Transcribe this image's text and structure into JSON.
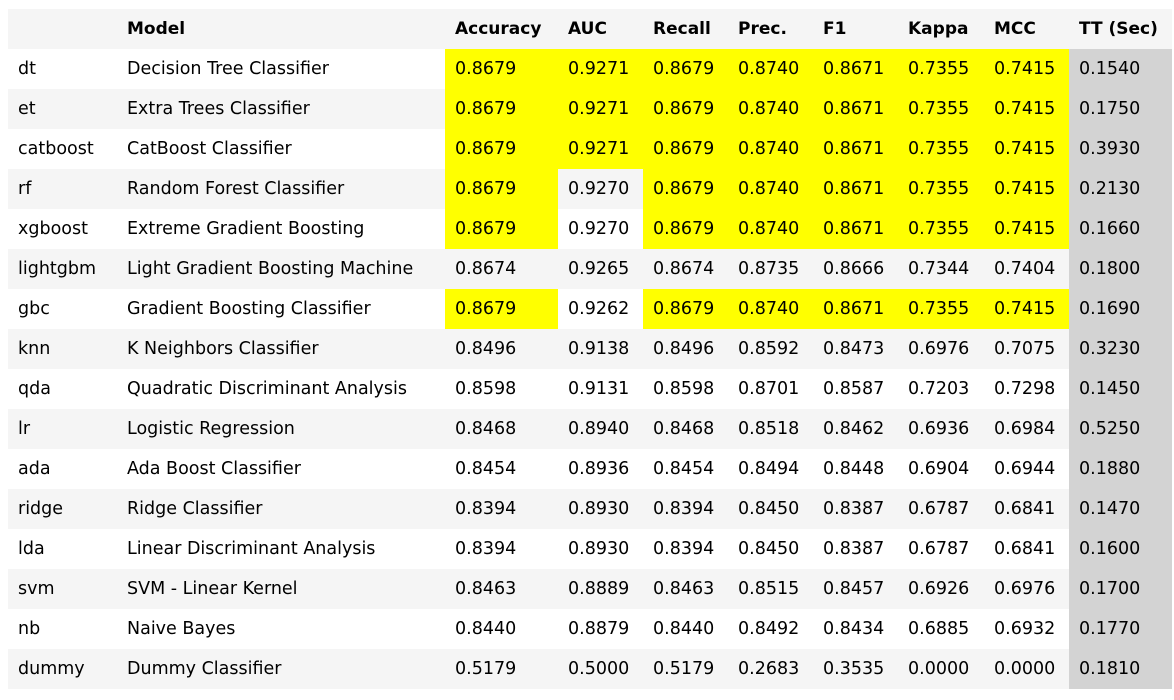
{
  "table": {
    "headers": [
      "",
      "Model",
      "Accuracy",
      "AUC",
      "Recall",
      "Prec.",
      "F1",
      "Kappa",
      "MCC",
      "TT (Sec)"
    ],
    "highlight_color": "#ffff00",
    "tt_column_color": "#d3d3d3",
    "rows": [
      {
        "id": "dt",
        "model": "Decision Tree Classifier",
        "accuracy": "0.8679",
        "auc": "0.9271",
        "recall": "0.8679",
        "prec": "0.8740",
        "f1": "0.8671",
        "kappa": "0.7355",
        "mcc": "0.7415",
        "tt": "0.1540",
        "hl": [
          1,
          1,
          1,
          1,
          1,
          1,
          1
        ]
      },
      {
        "id": "et",
        "model": "Extra Trees Classifier",
        "accuracy": "0.8679",
        "auc": "0.9271",
        "recall": "0.8679",
        "prec": "0.8740",
        "f1": "0.8671",
        "kappa": "0.7355",
        "mcc": "0.7415",
        "tt": "0.1750",
        "hl": [
          1,
          1,
          1,
          1,
          1,
          1,
          1
        ]
      },
      {
        "id": "catboost",
        "model": "CatBoost Classifier",
        "accuracy": "0.8679",
        "auc": "0.9271",
        "recall": "0.8679",
        "prec": "0.8740",
        "f1": "0.8671",
        "kappa": "0.7355",
        "mcc": "0.7415",
        "tt": "0.3930",
        "hl": [
          1,
          1,
          1,
          1,
          1,
          1,
          1
        ]
      },
      {
        "id": "rf",
        "model": "Random Forest Classifier",
        "accuracy": "0.8679",
        "auc": "0.9270",
        "recall": "0.8679",
        "prec": "0.8740",
        "f1": "0.8671",
        "kappa": "0.7355",
        "mcc": "0.7415",
        "tt": "0.2130",
        "hl": [
          1,
          0,
          1,
          1,
          1,
          1,
          1
        ]
      },
      {
        "id": "xgboost",
        "model": "Extreme Gradient Boosting",
        "accuracy": "0.8679",
        "auc": "0.9270",
        "recall": "0.8679",
        "prec": "0.8740",
        "f1": "0.8671",
        "kappa": "0.7355",
        "mcc": "0.7415",
        "tt": "0.1660",
        "hl": [
          1,
          0,
          1,
          1,
          1,
          1,
          1
        ]
      },
      {
        "id": "lightgbm",
        "model": "Light Gradient Boosting Machine",
        "accuracy": "0.8674",
        "auc": "0.9265",
        "recall": "0.8674",
        "prec": "0.8735",
        "f1": "0.8666",
        "kappa": "0.7344",
        "mcc": "0.7404",
        "tt": "0.1800",
        "hl": [
          0,
          0,
          0,
          0,
          0,
          0,
          0
        ]
      },
      {
        "id": "gbc",
        "model": "Gradient Boosting Classifier",
        "accuracy": "0.8679",
        "auc": "0.9262",
        "recall": "0.8679",
        "prec": "0.8740",
        "f1": "0.8671",
        "kappa": "0.7355",
        "mcc": "0.7415",
        "tt": "0.1690",
        "hl": [
          1,
          0,
          1,
          1,
          1,
          1,
          1
        ]
      },
      {
        "id": "knn",
        "model": "K Neighbors Classifier",
        "accuracy": "0.8496",
        "auc": "0.9138",
        "recall": "0.8496",
        "prec": "0.8592",
        "f1": "0.8473",
        "kappa": "0.6976",
        "mcc": "0.7075",
        "tt": "0.3230",
        "hl": [
          0,
          0,
          0,
          0,
          0,
          0,
          0
        ]
      },
      {
        "id": "qda",
        "model": "Quadratic Discriminant Analysis",
        "accuracy": "0.8598",
        "auc": "0.9131",
        "recall": "0.8598",
        "prec": "0.8701",
        "f1": "0.8587",
        "kappa": "0.7203",
        "mcc": "0.7298",
        "tt": "0.1450",
        "hl": [
          0,
          0,
          0,
          0,
          0,
          0,
          0
        ]
      },
      {
        "id": "lr",
        "model": "Logistic Regression",
        "accuracy": "0.8468",
        "auc": "0.8940",
        "recall": "0.8468",
        "prec": "0.8518",
        "f1": "0.8462",
        "kappa": "0.6936",
        "mcc": "0.6984",
        "tt": "0.5250",
        "hl": [
          0,
          0,
          0,
          0,
          0,
          0,
          0
        ]
      },
      {
        "id": "ada",
        "model": "Ada Boost Classifier",
        "accuracy": "0.8454",
        "auc": "0.8936",
        "recall": "0.8454",
        "prec": "0.8494",
        "f1": "0.8448",
        "kappa": "0.6904",
        "mcc": "0.6944",
        "tt": "0.1880",
        "hl": [
          0,
          0,
          0,
          0,
          0,
          0,
          0
        ]
      },
      {
        "id": "ridge",
        "model": "Ridge Classifier",
        "accuracy": "0.8394",
        "auc": "0.8930",
        "recall": "0.8394",
        "prec": "0.8450",
        "f1": "0.8387",
        "kappa": "0.6787",
        "mcc": "0.6841",
        "tt": "0.1470",
        "hl": [
          0,
          0,
          0,
          0,
          0,
          0,
          0
        ]
      },
      {
        "id": "lda",
        "model": "Linear Discriminant Analysis",
        "accuracy": "0.8394",
        "auc": "0.8930",
        "recall": "0.8394",
        "prec": "0.8450",
        "f1": "0.8387",
        "kappa": "0.6787",
        "mcc": "0.6841",
        "tt": "0.1600",
        "hl": [
          0,
          0,
          0,
          0,
          0,
          0,
          0
        ]
      },
      {
        "id": "svm",
        "model": "SVM - Linear Kernel",
        "accuracy": "0.8463",
        "auc": "0.8889",
        "recall": "0.8463",
        "prec": "0.8515",
        "f1": "0.8457",
        "kappa": "0.6926",
        "mcc": "0.6976",
        "tt": "0.1700",
        "hl": [
          0,
          0,
          0,
          0,
          0,
          0,
          0
        ]
      },
      {
        "id": "nb",
        "model": "Naive Bayes",
        "accuracy": "0.8440",
        "auc": "0.8879",
        "recall": "0.8440",
        "prec": "0.8492",
        "f1": "0.8434",
        "kappa": "0.6885",
        "mcc": "0.6932",
        "tt": "0.1770",
        "hl": [
          0,
          0,
          0,
          0,
          0,
          0,
          0
        ]
      },
      {
        "id": "dummy",
        "model": "Dummy Classifier",
        "accuracy": "0.5179",
        "auc": "0.5000",
        "recall": "0.5179",
        "prec": "0.2683",
        "f1": "0.3535",
        "kappa": "0.0000",
        "mcc": "0.0000",
        "tt": "0.1810",
        "hl": [
          0,
          0,
          0,
          0,
          0,
          0,
          0
        ]
      }
    ]
  }
}
